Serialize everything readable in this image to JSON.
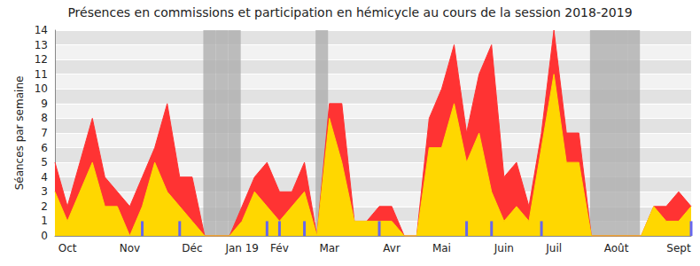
{
  "chart_data": {
    "type": "line",
    "title": "Présences en commissions et participation en hémicycle au cours de la session 2018-2019",
    "y_label": "Séances par semaine",
    "categories": [
      null,
      "Oct",
      null,
      null,
      null,
      null,
      "Nov",
      null,
      null,
      null,
      null,
      "Déc",
      null,
      null,
      null,
      "Jan 19",
      null,
      null,
      "Fév",
      null,
      null,
      null,
      "Mar",
      null,
      null,
      null,
      null,
      "Avr",
      null,
      null,
      null,
      "Mai",
      null,
      null,
      null,
      null,
      "Juin",
      null,
      null,
      null,
      "Juil",
      null,
      null,
      null,
      null,
      "Août",
      null,
      null,
      null,
      null,
      "Sept",
      null
    ],
    "series": [
      {
        "type": "bar",
        "color": "#aaaaaa",
        "values": [
          null,
          null,
          null,
          null,
          null,
          null,
          null,
          null,
          null,
          null,
          null,
          null,
          14,
          14,
          14,
          null,
          null,
          null,
          null,
          null,
          null,
          14,
          null,
          null,
          null,
          null,
          null,
          null,
          null,
          null,
          null,
          null,
          null,
          null,
          null,
          null,
          null,
          null,
          null,
          null,
          null,
          null,
          null,
          14,
          14,
          14,
          14,
          null,
          null,
          null,
          null,
          null
        ]
      },
      {
        "type": "area",
        "color": "#ff3333",
        "values": [
          5,
          2,
          5,
          8,
          4,
          3,
          2,
          4,
          6,
          9,
          4,
          4,
          0,
          0,
          0,
          2,
          4,
          5,
          3,
          3,
          5,
          0,
          9,
          9,
          1,
          1,
          2,
          2,
          0,
          0,
          8,
          10,
          13,
          7,
          11,
          13,
          4,
          5,
          2,
          7,
          14,
          7,
          7,
          0,
          0,
          0,
          0,
          0,
          2,
          2,
          3,
          2
        ]
      },
      {
        "type": "area",
        "color": "#ffd700",
        "values": [
          3,
          1,
          3,
          5,
          2,
          2,
          0,
          2,
          5,
          3,
          2,
          1,
          0,
          0,
          0,
          1,
          3,
          2,
          1,
          2,
          3,
          0,
          8,
          5,
          1,
          1,
          1,
          1,
          0,
          0,
          6,
          6,
          9,
          5,
          7,
          3,
          1,
          2,
          1,
          6,
          11,
          5,
          5,
          0,
          0,
          0,
          0,
          0,
          2,
          1,
          1,
          2
        ]
      },
      {
        "type": "bar",
        "color": "#6666ee",
        "values": [
          null,
          null,
          null,
          null,
          null,
          null,
          null,
          1,
          null,
          null,
          1,
          null,
          null,
          null,
          null,
          null,
          null,
          1,
          1,
          null,
          1,
          null,
          null,
          null,
          null,
          null,
          1,
          null,
          null,
          null,
          null,
          null,
          null,
          1,
          null,
          1,
          null,
          null,
          null,
          1,
          null,
          null,
          null,
          null,
          null,
          null,
          null,
          null,
          null,
          null,
          null,
          1
        ]
      }
    ],
    "ylim": [
      0,
      14
    ],
    "yticks": [
      0,
      1,
      2,
      3,
      4,
      5,
      6,
      7,
      8,
      9,
      10,
      11,
      12,
      13,
      14
    ],
    "grid": true
  }
}
